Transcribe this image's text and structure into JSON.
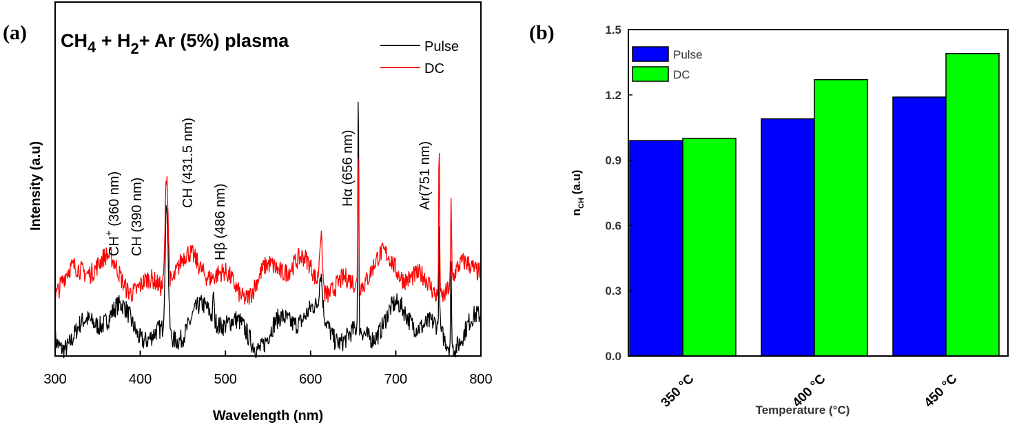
{
  "chart_data": [
    {
      "type": "line",
      "panel_label": "(a)",
      "title": "CH4 + H2+ Ar (5%) plasma",
      "xlabel": "Wavelength (nm)",
      "ylabel": "Intensity (a.u)",
      "xlim": [
        300,
        800
      ],
      "xticks": [
        "300",
        "400",
        "500",
        "600",
        "700",
        "800"
      ],
      "legend_placement": "top-right",
      "grid": false,
      "series": [
        {
          "name": "Pulse",
          "color": "#000000",
          "baseline": 0.09,
          "peaks": [
            [
              431,
              0.48
            ],
            [
              486,
              0.18
            ],
            [
              612,
              0.2
            ],
            [
              656,
              0.81
            ],
            [
              751,
              0.39
            ],
            [
              765,
              0.33
            ]
          ]
        },
        {
          "name": "DC",
          "color": "#ff0000",
          "baseline": 0.24,
          "peaks": [
            [
              431,
              0.58
            ],
            [
              612,
              0.4
            ],
            [
              656,
              0.66
            ],
            [
              751,
              0.71
            ],
            [
              765,
              0.47
            ]
          ]
        }
      ],
      "annotations": [
        {
          "text_main": "CH",
          "text_sup": "+",
          "text_rest": " (360 nm)",
          "x": 360
        },
        {
          "text_main": "CH (390 nm)",
          "text_sup": "",
          "text_rest": "",
          "x": 390
        },
        {
          "text_main": "CH (431.5 nm)",
          "text_sup": "",
          "text_rest": "",
          "x": 431.5
        },
        {
          "text_main": "Hβ (486 nm)",
          "text_sup": "",
          "text_rest": "",
          "x": 486
        },
        {
          "text_main": "Hα (656 nm)",
          "text_sup": "",
          "text_rest": "",
          "x": 656
        },
        {
          "text_main": "Ar(751 nm)",
          "text_sup": "",
          "text_rest": "",
          "x": 751
        }
      ]
    },
    {
      "type": "bar",
      "panel_label": "(b)",
      "xlabel": "Temperature (°C)",
      "ylabel": "n",
      "ylabel_sub": "CH",
      "ylabel_rest": " (a.u)",
      "ylim": [
        0,
        1.5
      ],
      "yticks": [
        "0.0",
        "0.3",
        "0.6",
        "0.9",
        "1.2",
        "1.5"
      ],
      "categories": [
        "350 °C",
        "400 °C",
        "450 °C"
      ],
      "legend_placement": "top-left",
      "grid": false,
      "series": [
        {
          "name": "Pulse",
          "color": "#0000ff",
          "values": [
            0.99,
            1.09,
            1.19
          ]
        },
        {
          "name": "DC",
          "color": "#00ff00",
          "values": [
            1.0,
            1.27,
            1.39
          ]
        }
      ]
    }
  ]
}
